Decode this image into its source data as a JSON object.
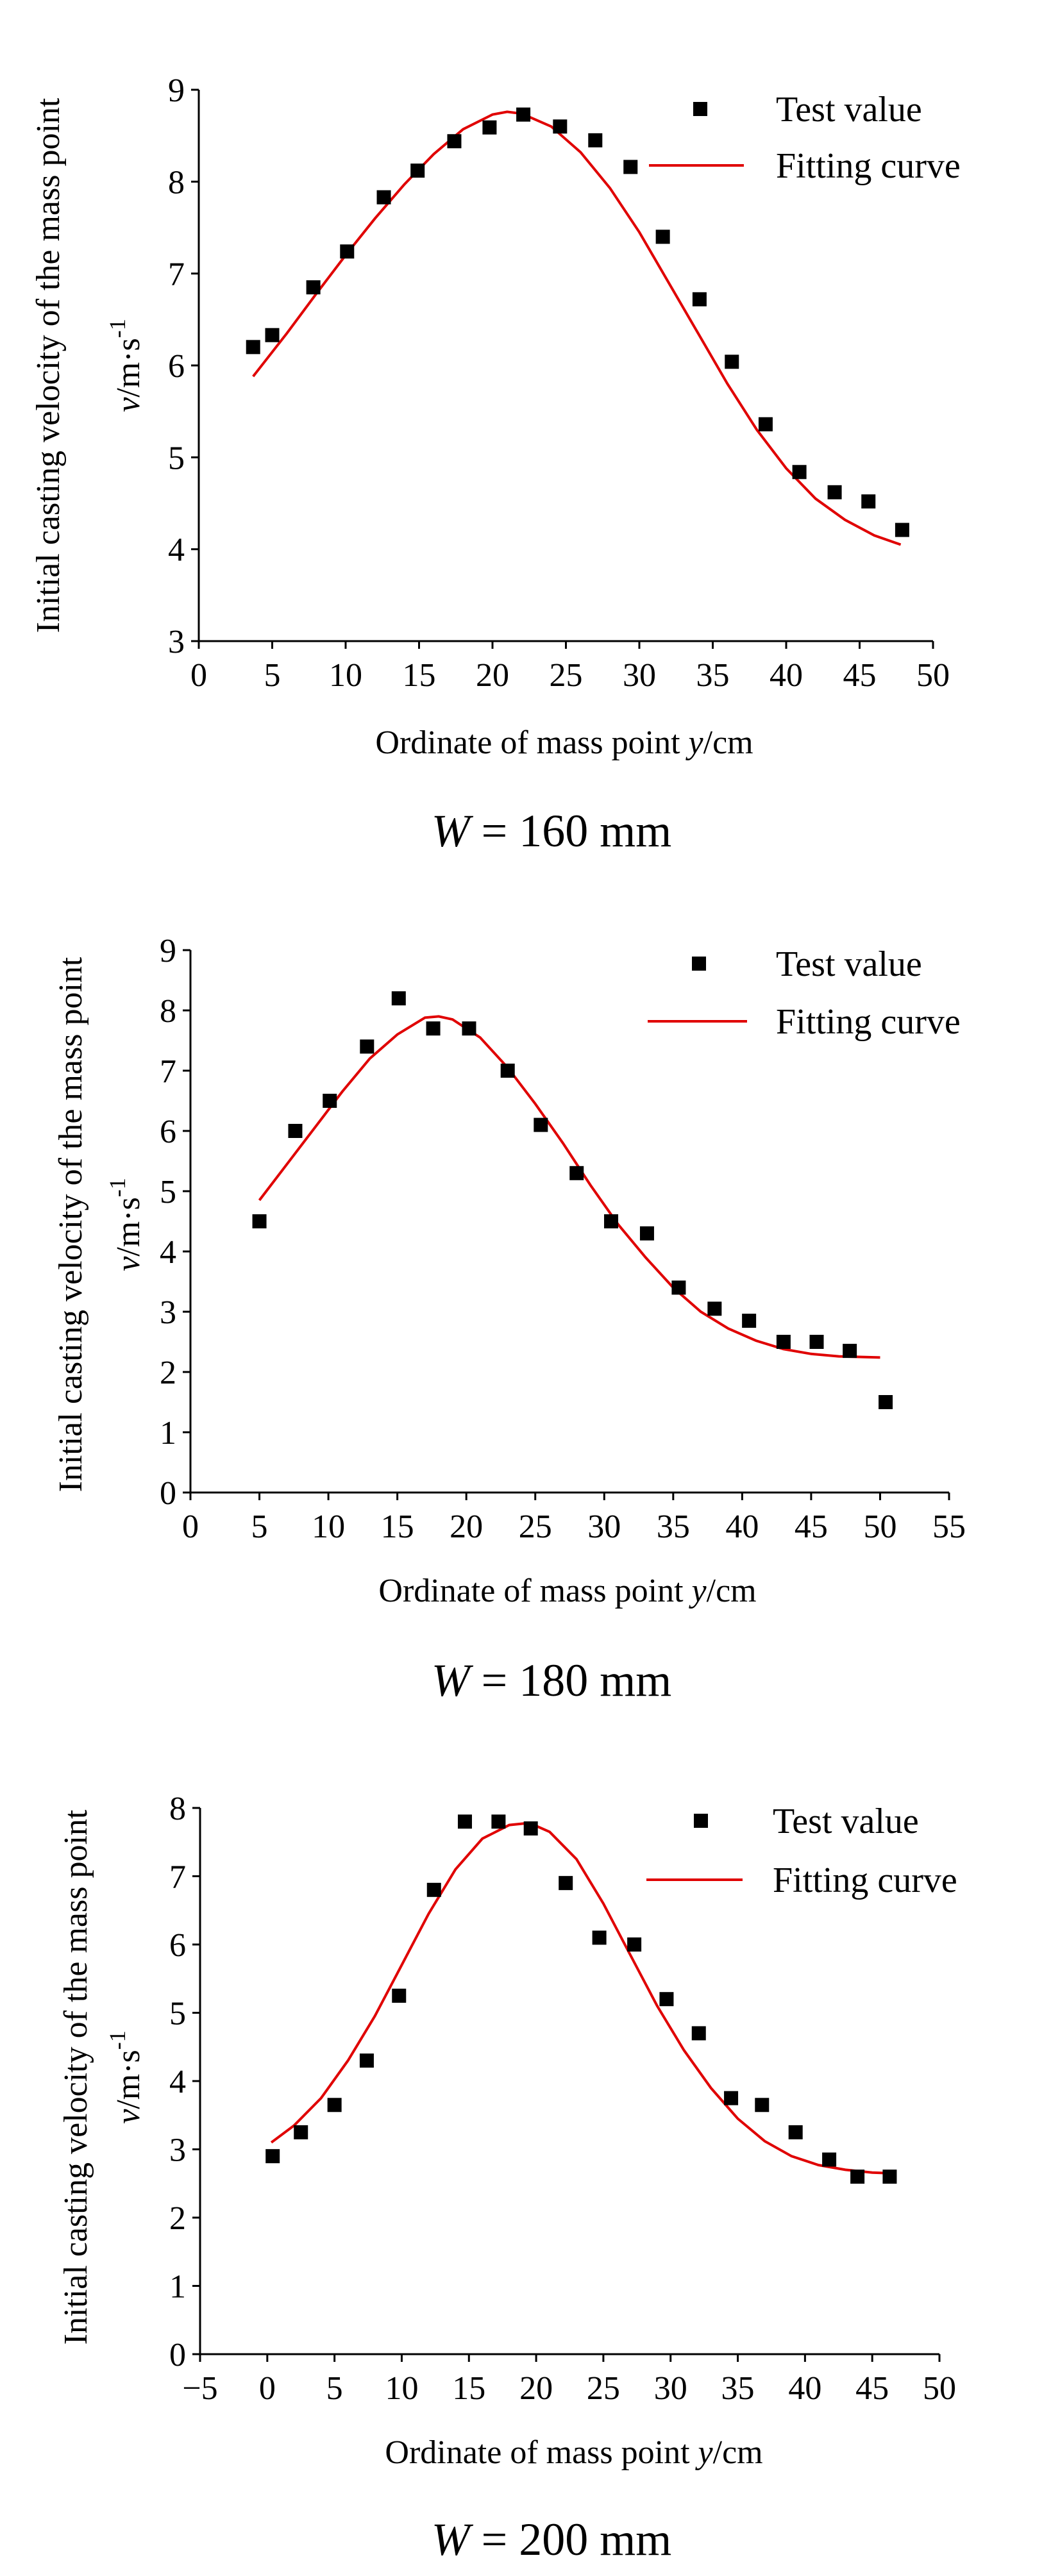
{
  "colors": {
    "points": "#000000",
    "fit": "#e00000",
    "axis": "#000000"
  },
  "chart_data": [
    {
      "type": "scatter",
      "caption": {
        "var": "W",
        "rest": " = 160 mm"
      },
      "xlabel": {
        "pre": "Ordinate of mass point ",
        "var": "y",
        "post": "/cm"
      },
      "ylabel": "Initial casting velocity of the mass point",
      "yunit": {
        "var": "v",
        "post": "/m·s",
        "sup": "-1"
      },
      "legend": {
        "position": "top-right",
        "points": "Test value",
        "fit": "Fitting curve"
      },
      "xlim": [
        0,
        50
      ],
      "ylim": [
        3,
        9
      ],
      "xticks": [
        0,
        5,
        10,
        15,
        20,
        25,
        30,
        35,
        40,
        45,
        50
      ],
      "yticks": [
        3,
        4,
        5,
        6,
        7,
        8,
        9
      ],
      "series": [
        {
          "name": "Test value",
          "kind": "scatter",
          "x": [
            3.7,
            5.0,
            7.8,
            10.1,
            12.6,
            14.9,
            17.4,
            19.8,
            22.1,
            24.6,
            27.0,
            29.4,
            31.6,
            34.1,
            36.3,
            38.6,
            40.9,
            43.3,
            45.6,
            47.9
          ],
          "y": [
            6.2,
            6.33,
            6.85,
            7.24,
            7.83,
            8.12,
            8.44,
            8.59,
            8.73,
            8.6,
            8.45,
            8.16,
            7.4,
            6.72,
            6.04,
            5.36,
            4.84,
            4.62,
            4.52,
            4.21
          ]
        },
        {
          "name": "Fitting curve",
          "kind": "line",
          "x": [
            3.7,
            6,
            8,
            10,
            12,
            14,
            16,
            18,
            20,
            21,
            22,
            24,
            26,
            28,
            30,
            32,
            34,
            36,
            38,
            40,
            42,
            44,
            46,
            47.8
          ],
          "y": [
            5.88,
            6.35,
            6.78,
            7.2,
            7.6,
            7.97,
            8.3,
            8.57,
            8.73,
            8.76,
            8.74,
            8.6,
            8.32,
            7.93,
            7.45,
            6.9,
            6.35,
            5.8,
            5.3,
            4.88,
            4.55,
            4.32,
            4.15,
            4.05
          ]
        }
      ]
    },
    {
      "type": "scatter",
      "caption": {
        "var": "W",
        "rest": " = 180 mm"
      },
      "xlabel": {
        "pre": "Ordinate of mass point ",
        "var": "y",
        "post": "/cm"
      },
      "ylabel": "Initial casting velocity of the mass point",
      "yunit": {
        "var": "v",
        "post": "/m·s",
        "sup": "-1"
      },
      "legend": {
        "position": "top-right",
        "points": "Test value",
        "fit": "Fitting curve"
      },
      "xlim": [
        0,
        55
      ],
      "ylim": [
        0,
        9
      ],
      "xticks": [
        0,
        5,
        10,
        15,
        20,
        25,
        30,
        35,
        40,
        45,
        50,
        55
      ],
      "yticks": [
        0,
        1,
        2,
        3,
        4,
        5,
        6,
        7,
        8,
        9
      ],
      "series": [
        {
          "name": "Test value",
          "kind": "scatter",
          "x": [
            5.0,
            7.6,
            10.1,
            12.8,
            15.1,
            17.6,
            20.2,
            23.0,
            25.4,
            28.0,
            30.5,
            33.1,
            35.4,
            38.0,
            40.5,
            43.0,
            45.4,
            47.8,
            50.4
          ],
          "y": [
            4.5,
            6.0,
            6.5,
            7.4,
            8.2,
            7.7,
            7.7,
            7.0,
            6.1,
            5.3,
            4.5,
            4.3,
            3.4,
            3.05,
            2.85,
            2.5,
            2.5,
            2.35,
            1.5
          ]
        },
        {
          "name": "Fitting curve",
          "kind": "line",
          "x": [
            5,
            7,
            9,
            11,
            13,
            15,
            17,
            18,
            19,
            21,
            23,
            25,
            27,
            29,
            31,
            33,
            35,
            37,
            39,
            41,
            43,
            45,
            47,
            50
          ],
          "y": [
            4.85,
            5.45,
            6.05,
            6.65,
            7.2,
            7.6,
            7.88,
            7.9,
            7.85,
            7.55,
            7.05,
            6.45,
            5.8,
            5.1,
            4.45,
            3.9,
            3.4,
            3.0,
            2.72,
            2.52,
            2.38,
            2.3,
            2.26,
            2.24
          ]
        }
      ]
    },
    {
      "type": "scatter",
      "caption": {
        "var": "W",
        "rest": " = 200 mm"
      },
      "xlabel": {
        "pre": "Ordinate of mass point ",
        "var": "y",
        "post": "/cm"
      },
      "ylabel": "Initial casting velocity of the mass point",
      "yunit": {
        "var": "v",
        "post": "/m·s",
        "sup": "-1"
      },
      "legend": {
        "position": "top-right",
        "points": "Test value",
        "fit": "Fitting curve"
      },
      "xlim": [
        -5,
        50
      ],
      "ylim": [
        0,
        8
      ],
      "xticks": [
        -5,
        0,
        5,
        10,
        15,
        20,
        25,
        30,
        35,
        40,
        45,
        50
      ],
      "xtick_labels": [
        "−5",
        "0",
        "5",
        "10",
        "15",
        "20",
        "25",
        "30",
        "35",
        "40",
        "45",
        "50"
      ],
      "yticks": [
        0,
        1,
        2,
        3,
        4,
        5,
        6,
        7,
        8
      ],
      "series": [
        {
          "name": "Test value",
          "kind": "scatter",
          "x": [
            0.4,
            2.5,
            5.0,
            7.4,
            9.8,
            12.4,
            14.7,
            17.2,
            19.6,
            22.2,
            24.7,
            27.3,
            29.7,
            32.1,
            34.5,
            36.8,
            39.3,
            41.8,
            43.9,
            46.3
          ],
          "y": [
            2.9,
            3.25,
            3.65,
            4.3,
            5.25,
            6.8,
            7.8,
            7.8,
            7.7,
            6.9,
            6.1,
            6.0,
            5.2,
            4.7,
            3.75,
            3.65,
            3.25,
            2.85,
            2.6,
            2.6
          ]
        },
        {
          "name": "Fitting curve",
          "kind": "line",
          "x": [
            0.3,
            2,
            4,
            6,
            8,
            10,
            12,
            14,
            16,
            18,
            19.5,
            21,
            23,
            25,
            27,
            29,
            31,
            33,
            35,
            37,
            39,
            41,
            43,
            45,
            46.3
          ],
          "y": [
            3.1,
            3.35,
            3.75,
            4.3,
            4.95,
            5.7,
            6.45,
            7.1,
            7.55,
            7.75,
            7.78,
            7.65,
            7.25,
            6.6,
            5.85,
            5.1,
            4.45,
            3.9,
            3.45,
            3.12,
            2.9,
            2.77,
            2.7,
            2.66,
            2.65
          ]
        }
      ]
    }
  ]
}
